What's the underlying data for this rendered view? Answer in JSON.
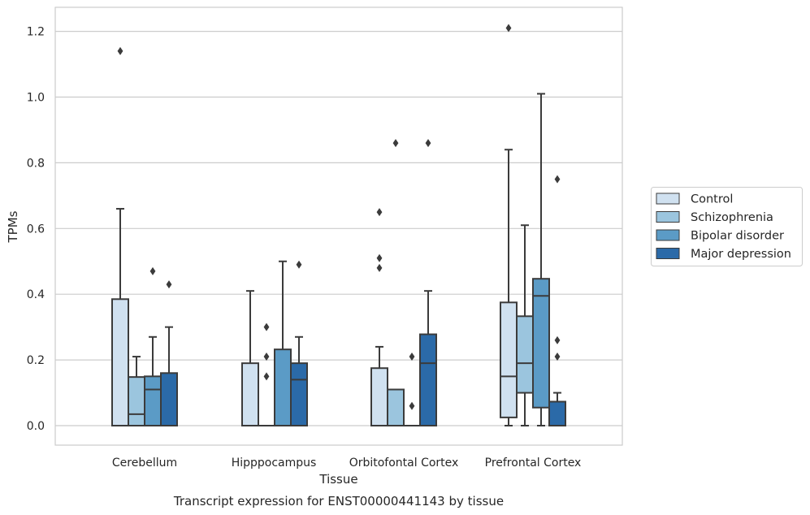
{
  "chart_data": {
    "type": "box",
    "caption": "Transcript expression for ENST00000441143 by tissue",
    "xlabel": "Tissue",
    "ylabel": "TPMs",
    "ylim": [
      -0.06,
      1.27
    ],
    "yticks": [
      "0.0",
      "0.2",
      "0.4",
      "0.6",
      "0.8",
      "1.0",
      "1.2"
    ],
    "categories": [
      "Cerebellum",
      "Hipppocampus",
      "Orbitofontal Cortex",
      "Prefrontal Cortex"
    ],
    "grid": "horizontal",
    "legend_position": "right",
    "series": [
      {
        "name": "Control",
        "color": "#d0e1f0",
        "boxes": [
          {
            "q1": 0.0,
            "median": 0.0,
            "q3": 0.385,
            "whisker_low": 0.0,
            "whisker_high": 0.66,
            "outliers": [
              1.14
            ]
          },
          {
            "q1": 0.0,
            "median": 0.0,
            "q3": 0.19,
            "whisker_low": 0.0,
            "whisker_high": 0.41,
            "outliers": []
          },
          {
            "q1": 0.0,
            "median": 0.0,
            "q3": 0.175,
            "whisker_low": 0.0,
            "whisker_high": 0.24,
            "outliers": [
              0.65,
              0.51,
              0.48
            ]
          },
          {
            "q1": 0.025,
            "median": 0.15,
            "q3": 0.375,
            "whisker_low": 0.0,
            "whisker_high": 0.84,
            "outliers": [
              1.21
            ]
          }
        ]
      },
      {
        "name": "Schizophrenia",
        "color": "#9bc5de",
        "boxes": [
          {
            "q1": 0.0,
            "median": 0.035,
            "q3": 0.148,
            "whisker_low": 0.0,
            "whisker_high": 0.21,
            "outliers": []
          },
          {
            "q1": 0.0,
            "median": 0.0,
            "q3": 0.0,
            "whisker_low": 0.0,
            "whisker_high": 0.0,
            "outliers": [
              0.3,
              0.21,
              0.15
            ]
          },
          {
            "q1": 0.0,
            "median": 0.0,
            "q3": 0.11,
            "whisker_low": 0.0,
            "whisker_high": 0.11,
            "outliers": [
              0.86
            ]
          },
          {
            "q1": 0.1,
            "median": 0.19,
            "q3": 0.333,
            "whisker_low": 0.0,
            "whisker_high": 0.61,
            "outliers": []
          }
        ]
      },
      {
        "name": "Bipolar disorder",
        "color": "#5b9bc6",
        "boxes": [
          {
            "q1": 0.0,
            "median": 0.11,
            "q3": 0.15,
            "whisker_low": 0.0,
            "whisker_high": 0.27,
            "outliers": [
              0.47
            ]
          },
          {
            "q1": 0.0,
            "median": 0.0,
            "q3": 0.232,
            "whisker_low": 0.0,
            "whisker_high": 0.5,
            "outliers": []
          },
          {
            "q1": 0.0,
            "median": 0.0,
            "q3": 0.0,
            "whisker_low": 0.0,
            "whisker_high": 0.0,
            "outliers": [
              0.21,
              0.06
            ]
          },
          {
            "q1": 0.055,
            "median": 0.395,
            "q3": 0.447,
            "whisker_low": 0.0,
            "whisker_high": 1.01,
            "outliers": []
          }
        ]
      },
      {
        "name": "Major depression",
        "color": "#2b6aa8",
        "boxes": [
          {
            "q1": 0.0,
            "median": 0.0,
            "q3": 0.16,
            "whisker_low": 0.0,
            "whisker_high": 0.3,
            "outliers": [
              0.43
            ]
          },
          {
            "q1": 0.0,
            "median": 0.14,
            "q3": 0.19,
            "whisker_low": 0.0,
            "whisker_high": 0.27,
            "outliers": [
              0.49
            ]
          },
          {
            "q1": 0.0,
            "median": 0.19,
            "q3": 0.278,
            "whisker_low": 0.0,
            "whisker_high": 0.41,
            "outliers": [
              0.86
            ]
          },
          {
            "q1": 0.0,
            "median": 0.0,
            "q3": 0.073,
            "whisker_low": 0.0,
            "whisker_high": 0.1,
            "outliers": [
              0.75,
              0.26,
              0.21
            ]
          }
        ]
      }
    ]
  }
}
